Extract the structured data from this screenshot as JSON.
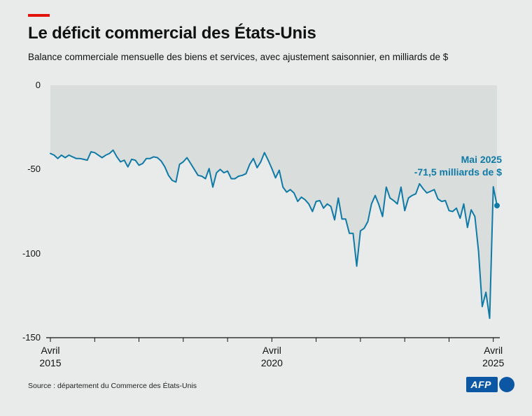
{
  "colors": {
    "background": "#e9ebea",
    "area_fill": "#d9dddc",
    "line": "#0f7aa6",
    "accent_red": "#e3120b",
    "logo_blue": "#0b57a4",
    "axis": "#111111"
  },
  "header": {
    "title": "Le déficit commercial des États-Unis",
    "subtitle": "Balance commerciale mensuelle des biens et services, avec ajustement saisonnier, en milliards de $"
  },
  "annotation": {
    "date": "Mai 2025",
    "value": "-71,5 milliards de $"
  },
  "footer": {
    "source": "Source : département du Commerce des États-Unis",
    "logo_text": "AFP"
  },
  "chart_data": {
    "type": "area",
    "title": "Le déficit commercial des États-Unis",
    "subtitle": "Balance commerciale mensuelle des biens et services, avec ajustement saisonnier, en milliards de $",
    "unit": "milliards de $",
    "frequency": "monthly",
    "start_month": "2015-04",
    "end_month": "2025-05",
    "ylim": [
      -150,
      0
    ],
    "y_ticks": [
      0,
      -50,
      -100,
      -150
    ],
    "y_tick_labels": [
      "0",
      "-50",
      "-100",
      "-150"
    ],
    "x_tick_positions": [
      0,
      60,
      120
    ],
    "x_tick_labels": [
      {
        "top": "Avril",
        "bottom": "2015"
      },
      {
        "top": "Avril",
        "bottom": "2020"
      },
      {
        "top": "Avril",
        "bottom": "2025"
      }
    ],
    "grid": false,
    "legend": "none",
    "last_point": {
      "label": "Mai 2025",
      "value": -71.5
    },
    "values": [
      -40.5,
      -41.5,
      -43.5,
      -41.5,
      -43.0,
      -41.5,
      -42.5,
      -43.5,
      -43.5,
      -44.0,
      -44.5,
      -39.5,
      -40.0,
      -41.5,
      -43.0,
      -41.5,
      -40.5,
      -38.5,
      -42.5,
      -45.5,
      -44.5,
      -48.5,
      -44.0,
      -44.5,
      -47.5,
      -46.5,
      -43.5,
      -43.5,
      -42.5,
      -43.0,
      -45.0,
      -48.5,
      -53.5,
      -56.5,
      -57.5,
      -47.0,
      -45.5,
      -43.0,
      -46.5,
      -50.0,
      -53.5,
      -54.0,
      -55.5,
      -49.5,
      -60.5,
      -52.0,
      -50.0,
      -52.0,
      -51.0,
      -55.5,
      -55.5,
      -54.0,
      -53.5,
      -52.5,
      -47.0,
      -43.5,
      -49.0,
      -45.5,
      -40.0,
      -44.5,
      -49.5,
      -55.0,
      -50.5,
      -60.5,
      -63.5,
      -62.0,
      -64.0,
      -69.0,
      -66.5,
      -68.0,
      -70.5,
      -75.0,
      -69.0,
      -68.5,
      -73.0,
      -70.5,
      -72.0,
      -80.0,
      -67.0,
      -79.5,
      -79.5,
      -88.0,
      -88.0,
      -107.5,
      -86.5,
      -85.0,
      -81.0,
      -70.5,
      -65.5,
      -71.0,
      -78.0,
      -60.5,
      -67.0,
      -68.5,
      -70.5,
      -60.5,
      -74.5,
      -67.0,
      -65.5,
      -64.5,
      -58.5,
      -61.5,
      -64.0,
      -63.0,
      -62.0,
      -67.5,
      -69.0,
      -68.5,
      -74.5,
      -75.0,
      -73.0,
      -79.0,
      -70.5,
      -84.5,
      -74.0,
      -78.0,
      -98.5,
      -131.5,
      -123.0,
      -138.5,
      -60.3,
      -71.5
    ]
  }
}
